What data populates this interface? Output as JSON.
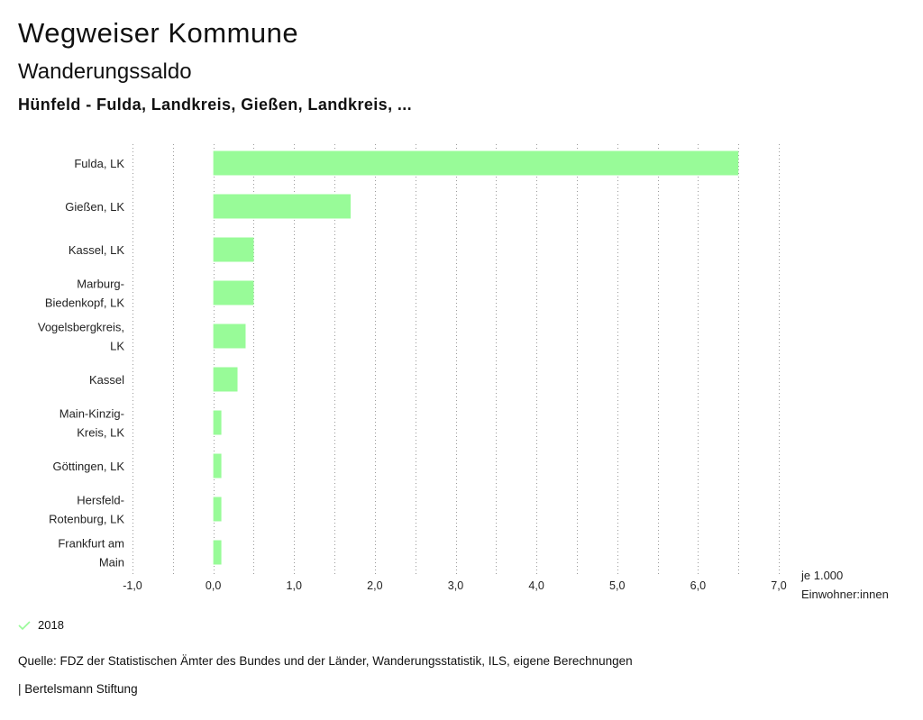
{
  "header": {
    "title": "Wegweiser Kommune",
    "subtitle": "Wanderungssaldo",
    "regions": "Hünfeld - Fulda, Landkreis, Gießen, Landkreis, ..."
  },
  "chart_data": {
    "type": "bar",
    "orientation": "horizontal",
    "categories": [
      [
        "Fulda, LK"
      ],
      [
        "Gießen, LK"
      ],
      [
        "Kassel, LK"
      ],
      [
        "Marburg-",
        "Biedenkopf, LK"
      ],
      [
        "Vogelsbergkreis,",
        "LK"
      ],
      [
        "Kassel"
      ],
      [
        "Main-Kinzig-",
        "Kreis, LK"
      ],
      [
        "Göttingen, LK"
      ],
      [
        "Hersfeld-",
        "Rotenburg, LK"
      ],
      [
        "Frankfurt am",
        "Main"
      ]
    ],
    "series": [
      {
        "name": "2018",
        "color": "#98fb98",
        "values": [
          6.5,
          1.7,
          0.5,
          0.5,
          0.4,
          0.3,
          0.1,
          0.1,
          0.1,
          0.1
        ]
      }
    ],
    "xlim": [
      -1.0,
      7.0
    ],
    "ticks": [
      -1.0,
      0.0,
      1.0,
      2.0,
      3.0,
      4.0,
      5.0,
      6.0,
      7.0
    ],
    "tick_labels": [
      "-1,0",
      "0,0",
      "1,0",
      "2,0",
      "3,0",
      "4,0",
      "5,0",
      "6,0",
      "7,0"
    ],
    "grid_step": 0.5,
    "unit_label": [
      "je 1.000",
      "Einwohner:innen"
    ],
    "grid": true
  },
  "legend": {
    "label": "2018",
    "color": "#98fb98"
  },
  "footer": {
    "source": "Quelle: FDZ der Statistischen Ämter des Bundes und der Länder, Wanderungsstatistik, ILS, eigene Berechnungen",
    "credit": "| Bertelsmann Stiftung"
  }
}
